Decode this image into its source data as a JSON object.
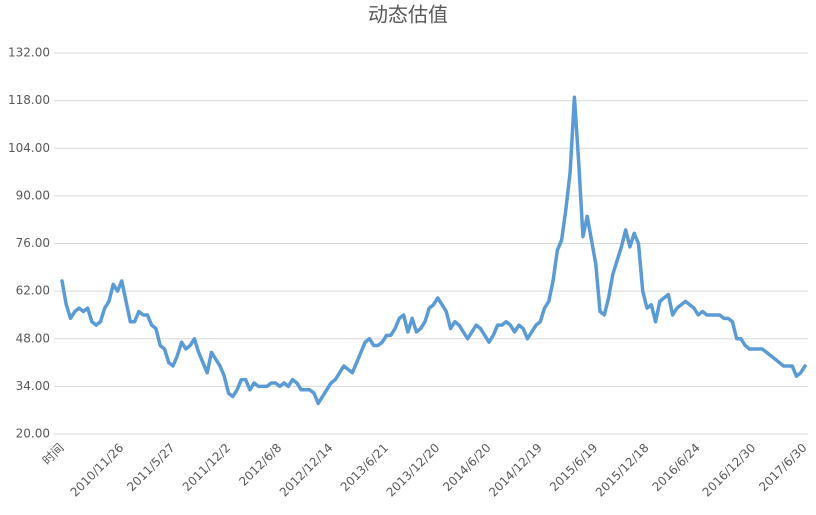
{
  "chart_data": {
    "type": "line",
    "title": "动态估值",
    "categories": [
      "时间",
      null,
      null,
      null,
      null,
      null,
      null,
      null,
      null,
      null,
      null,
      null,
      null,
      null,
      "2010/11/26",
      null,
      null,
      null,
      null,
      null,
      null,
      null,
      null,
      null,
      null,
      null,
      "2011/5/27",
      null,
      null,
      null,
      null,
      null,
      null,
      null,
      null,
      null,
      null,
      null,
      null,
      "2011/12/2",
      null,
      null,
      null,
      null,
      null,
      null,
      null,
      null,
      null,
      null,
      null,
      "2012/6/8",
      null,
      null,
      null,
      null,
      null,
      null,
      null,
      null,
      null,
      null,
      null,
      "2012/12/14",
      null,
      null,
      null,
      null,
      null,
      null,
      null,
      null,
      null,
      null,
      null,
      null,
      "2013/6/21",
      null,
      null,
      null,
      null,
      null,
      null,
      null,
      null,
      null,
      null,
      null,
      "2013/12/20",
      null,
      null,
      null,
      null,
      null,
      null,
      null,
      null,
      null,
      null,
      null,
      "2014/6/20",
      null,
      null,
      null,
      null,
      null,
      null,
      null,
      null,
      null,
      null,
      null,
      "2014/12/19",
      null,
      null,
      null,
      null,
      null,
      null,
      null,
      null,
      null,
      null,
      null,
      null,
      "2015/6/19",
      null,
      null,
      null,
      null,
      null,
      null,
      null,
      null,
      null,
      null,
      null,
      "2015/12/18",
      null,
      null,
      null,
      null,
      null,
      null,
      null,
      null,
      null,
      null,
      null,
      "2016/6/24",
      null,
      null,
      null,
      null,
      null,
      null,
      null,
      null,
      null,
      null,
      null,
      null,
      "2016/12/30",
      null,
      null,
      null,
      null,
      null,
      null,
      null,
      null,
      null,
      null,
      null,
      "2017/6/30"
    ],
    "series": [
      {
        "name": "动态估值",
        "color": "#5b9bd5",
        "values": [
          65,
          58,
          54,
          56,
          57,
          56,
          57,
          53,
          52,
          53,
          57,
          59,
          64,
          62,
          65,
          59,
          53,
          53,
          56,
          55,
          55,
          52,
          51,
          46,
          45,
          41,
          40,
          43,
          47,
          45,
          46,
          48,
          44,
          41,
          38,
          44,
          42,
          40,
          37,
          32,
          31,
          33,
          36,
          36,
          33,
          35,
          34,
          34,
          34,
          35,
          35,
          34,
          35,
          34,
          36,
          35,
          33,
          33,
          33,
          32,
          29,
          31,
          33,
          35,
          36,
          38,
          40,
          39,
          38,
          41,
          44,
          47,
          48,
          46,
          46,
          47,
          49,
          49,
          51,
          54,
          55,
          50,
          54,
          50,
          51,
          53,
          57,
          58,
          60,
          58,
          56,
          51,
          53,
          52,
          50,
          48,
          50,
          52,
          51,
          49,
          47,
          49,
          52,
          52,
          53,
          52,
          50,
          52,
          51,
          48,
          50,
          52,
          53,
          57,
          59,
          65,
          74,
          77,
          86,
          97,
          119,
          100,
          78,
          84,
          77,
          70,
          56,
          55,
          60,
          67,
          71,
          75,
          80,
          75,
          79,
          76,
          62,
          57,
          58,
          53,
          59,
          60,
          61,
          55,
          57,
          58,
          59,
          58,
          57,
          55,
          56,
          55,
          55,
          55,
          55,
          54,
          54,
          53,
          48,
          48,
          46,
          45,
          45,
          45,
          45,
          44,
          43,
          42,
          41,
          40,
          40,
          40,
          37,
          38,
          40
        ]
      }
    ],
    "ylim": [
      20,
      132
    ],
    "yticks": [
      {
        "value": 20,
        "label": "20.00"
      },
      {
        "value": 34,
        "label": "34.00"
      },
      {
        "value": 48,
        "label": "48.00"
      },
      {
        "value": 62,
        "label": "62.00"
      },
      {
        "value": 76,
        "label": "76.00"
      },
      {
        "value": 90,
        "label": "90.00"
      },
      {
        "value": 104,
        "label": "104.00"
      },
      {
        "value": 118,
        "label": "118.00"
      },
      {
        "value": 132,
        "label": "132.00"
      }
    ],
    "grid": true
  }
}
